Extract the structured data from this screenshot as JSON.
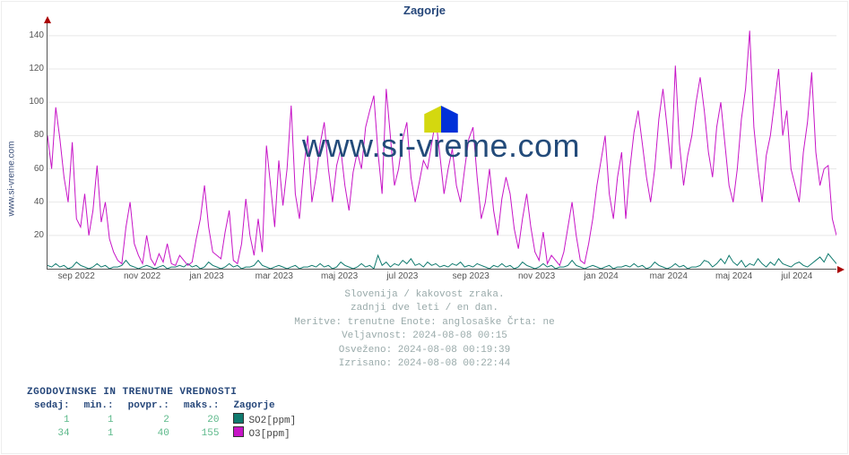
{
  "title": "Zagorje",
  "side_label": "www.si-vreme.com",
  "watermark_text": "www.si-vreme.com",
  "chart": {
    "type": "line",
    "ylim": [
      0,
      148
    ],
    "yticks": [
      20,
      40,
      60,
      80,
      100,
      120,
      140
    ],
    "xticks": [
      "sep 2022",
      "nov 2022",
      "jan 2023",
      "mar 2023",
      "maj 2023",
      "jul 2023",
      "sep 2023",
      "nov 2023",
      "jan 2024",
      "mar 2024",
      "maj 2024",
      "jul 2024"
    ],
    "grid_color": "#e8e8e8",
    "axis_color": "#555555",
    "arrow_color": "#aa0000",
    "background": "#ffffff",
    "series": [
      {
        "name": "SO2",
        "color": "#0f7a6e",
        "values": [
          2,
          1,
          3,
          1,
          2,
          0,
          1,
          4,
          2,
          1,
          0,
          1,
          3,
          1,
          2,
          0,
          1,
          1,
          2,
          5,
          2,
          1,
          0,
          1,
          2,
          1,
          0,
          1,
          2,
          0,
          1,
          1,
          2,
          1,
          3,
          1,
          2,
          0,
          1,
          4,
          2,
          1,
          0,
          1,
          3,
          1,
          2,
          0,
          1,
          1,
          2,
          5,
          2,
          1,
          0,
          1,
          2,
          1,
          0,
          1,
          2,
          0,
          1,
          1,
          2,
          1,
          3,
          1,
          2,
          0,
          1,
          4,
          2,
          1,
          0,
          1,
          3,
          1,
          2,
          0,
          8,
          2,
          4,
          1,
          3,
          2,
          5,
          3,
          6,
          2,
          3,
          1,
          4,
          2,
          3,
          1,
          2,
          1,
          3,
          2,
          4,
          1,
          2,
          1,
          3,
          2,
          1,
          0,
          2,
          1,
          3,
          1,
          2,
          0,
          1,
          4,
          2,
          1,
          0,
          1,
          3,
          1,
          2,
          0,
          1,
          1,
          2,
          5,
          2,
          1,
          0,
          1,
          2,
          1,
          0,
          1,
          2,
          0,
          1,
          1,
          2,
          1,
          3,
          1,
          2,
          0,
          1,
          4,
          2,
          1,
          0,
          1,
          3,
          1,
          2,
          0,
          1,
          1,
          2,
          5,
          4,
          1,
          3,
          6,
          3,
          8,
          4,
          2,
          5,
          1,
          3,
          2,
          6,
          3,
          1,
          4,
          2,
          6,
          3,
          2,
          1,
          3,
          4,
          2,
          1,
          3,
          5,
          7,
          4,
          9,
          6,
          3
        ]
      },
      {
        "name": "O3",
        "color": "#c715c7",
        "values": [
          80,
          60,
          97,
          78,
          55,
          40,
          76,
          30,
          25,
          45,
          20,
          35,
          62,
          28,
          40,
          18,
          10,
          5,
          3,
          25,
          40,
          15,
          8,
          3,
          20,
          6,
          2,
          9,
          4,
          15,
          3,
          2,
          8,
          5,
          2,
          4,
          18,
          30,
          50,
          25,
          10,
          8,
          6,
          22,
          35,
          5,
          3,
          15,
          42,
          20,
          8,
          30,
          10,
          74,
          50,
          25,
          65,
          38,
          60,
          98,
          45,
          30,
          60,
          80,
          40,
          55,
          75,
          88,
          60,
          40,
          62,
          72,
          50,
          35,
          58,
          70,
          60,
          85,
          95,
          104,
          70,
          45,
          108,
          80,
          50,
          60,
          78,
          88,
          55,
          40,
          52,
          65,
          60,
          75,
          90,
          68,
          45,
          60,
          72,
          50,
          40,
          60,
          78,
          85,
          55,
          30,
          40,
          60,
          35,
          20,
          42,
          55,
          45,
          24,
          12,
          30,
          45,
          25,
          10,
          5,
          22,
          3,
          8,
          5,
          2,
          10,
          25,
          40,
          20,
          5,
          3,
          15,
          30,
          50,
          65,
          80,
          45,
          30,
          55,
          70,
          30,
          60,
          82,
          95,
          75,
          55,
          40,
          60,
          90,
          108,
          85,
          60,
          122,
          75,
          50,
          68,
          80,
          100,
          115,
          95,
          70,
          55,
          85,
          100,
          75,
          50,
          40,
          60,
          90,
          108,
          143,
          85,
          60,
          40,
          68,
          80,
          100,
          120,
          80,
          95,
          60,
          50,
          40,
          70,
          88,
          118,
          70,
          50,
          60,
          62,
          30,
          20
        ]
      }
    ]
  },
  "meta_lines": [
    "Slovenija / kakovost zraka.",
    "zadnji dve leti / en dan.",
    "Meritve: trenutne  Enote: anglosaške  Črta: ne",
    "Veljavnost: 2024-08-08 00:15",
    "Osveženo: 2024-08-08 00:19:39",
    "Izrisano: 2024-08-08 00:22:44"
  ],
  "legend": {
    "header": "ZGODOVINSKE IN TRENUTNE VREDNOSTI",
    "cols": [
      "sedaj:",
      "min.:",
      "povpr.:",
      "maks.:",
      "Zagorje"
    ],
    "rows": [
      {
        "vals": [
          "1",
          "1",
          "2",
          "20"
        ],
        "swatch": "#0f7a6e",
        "label": "SO2[ppm]"
      },
      {
        "vals": [
          "34",
          "1",
          "40",
          "155"
        ],
        "swatch": "#c715c7",
        "label": "O3[ppm]"
      }
    ],
    "value_color": "#5bb889"
  },
  "logo": {
    "left_color": "#d4d80f",
    "right_color": "#0030d8"
  }
}
